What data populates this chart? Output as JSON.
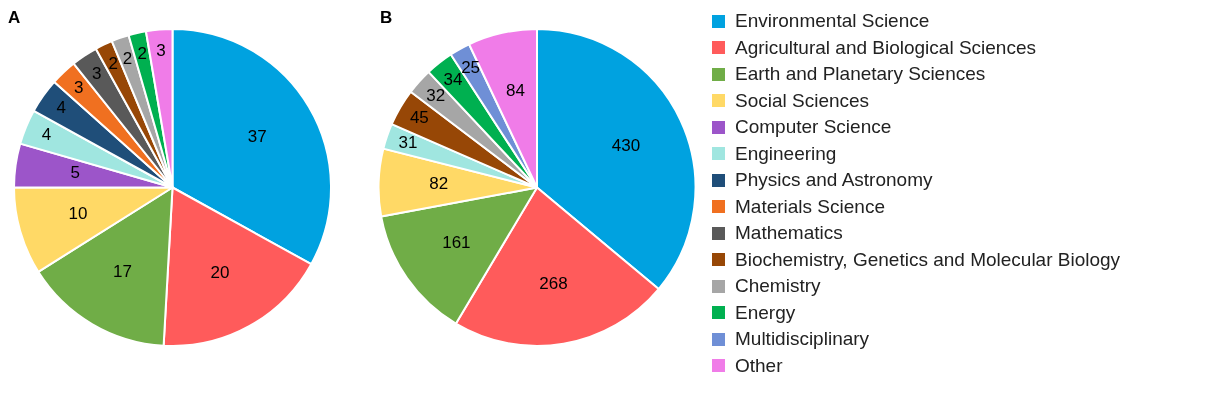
{
  "chart_data": {
    "type": "pie",
    "categories": [
      "Environmental Science",
      "Agricultural and Biological Sciences",
      "Earth and Planetary Sciences",
      "Social Sciences",
      "Computer Science",
      "Engineering",
      "Physics and Astronomy",
      "Materials Science",
      "Mathematics",
      "Biochemistry, Genetics and Molecular Biology",
      "Chemistry",
      "Energy",
      "Multidisciplinary",
      "Other"
    ],
    "colors": [
      "#00a2e0",
      "#ff5b5b",
      "#70ad47",
      "#ffd966",
      "#9c55c9",
      "#a0e6e0",
      "#1f4e79",
      "#f07020",
      "#595959",
      "#974706",
      "#a6a6a6",
      "#00b050",
      "#6f8fd6",
      "#f07ce8"
    ],
    "series": [
      {
        "values": [
          37,
          20,
          17,
          10,
          5,
          4,
          4,
          3,
          3,
          2,
          2,
          2,
          null,
          3
        ]
      },
      {
        "values": [
          430,
          268,
          161,
          82,
          null,
          31,
          null,
          null,
          null,
          45,
          32,
          34,
          25,
          84
        ]
      }
    ],
    "annotations": [
      "A",
      "B"
    ],
    "data_labels": true,
    "legend": "right"
  }
}
